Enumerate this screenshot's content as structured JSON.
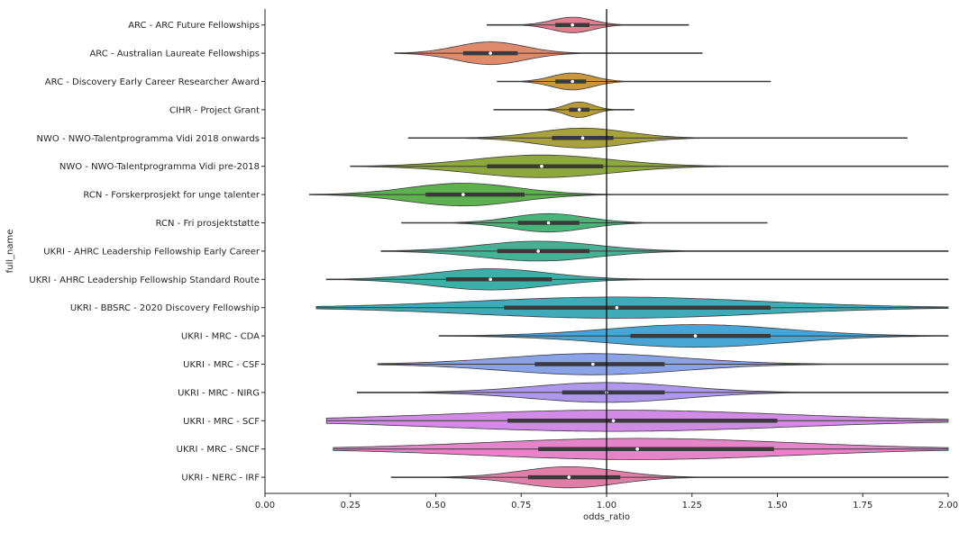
{
  "chart_data": {
    "type": "violin",
    "xlabel": "odds_ratio",
    "ylabel": "full_name",
    "xlim": [
      0.0,
      2.0
    ],
    "xticks": [
      "0.00",
      "0.25",
      "0.50",
      "0.75",
      "1.00",
      "1.25",
      "1.50",
      "1.75",
      "2.00"
    ],
    "xtick_values": [
      0,
      0.25,
      0.5,
      0.75,
      1.0,
      1.25,
      1.5,
      1.75,
      2.0
    ],
    "reference_line": 1.0,
    "categories": [
      "ARC - ARC Future Fellowships",
      "ARC - Australian Laureate Fellowships",
      "ARC - Discovery Early Career Researcher Award",
      "CIHR - Project Grant",
      "NWO - NWO-Talentprogramma Vidi 2018 onwards",
      "NWO - NWO-Talentprogramma Vidi pre-2018",
      "RCN - Forskerprosjekt for unge talenter",
      "RCN - Fri prosjektstøtte",
      "UKRI - AHRC Leadership Fellowship Early Career",
      "UKRI - AHRC Leadership Fellowship Standard Route",
      "UKRI - BBSRC - 2020 Discovery Fellowship",
      "UKRI - MRC - CDA",
      "UKRI - MRC - CSF",
      "UKRI - MRC - NIRG",
      "UKRI - MRC - SCF",
      "UKRI - MRC - SNCF",
      "UKRI - NERC - IRF"
    ],
    "series": [
      {
        "name": "ARC - ARC Future Fellowships",
        "min": 0.65,
        "max": 1.24,
        "q1": 0.85,
        "median": 0.9,
        "q3": 0.95,
        "width": 0.55,
        "sd": 0.06,
        "color": "#e17c91"
      },
      {
        "name": "ARC - Australian Laureate Fellowships",
        "min": 0.38,
        "max": 1.28,
        "q1": 0.58,
        "median": 0.66,
        "q3": 0.74,
        "width": 0.8,
        "sd": 0.1,
        "color": "#e08a6c"
      },
      {
        "name": "ARC - Discovery Early Career Researcher Award",
        "min": 0.68,
        "max": 1.48,
        "q1": 0.85,
        "median": 0.9,
        "q3": 0.94,
        "width": 0.6,
        "sd": 0.06,
        "color": "#c9973d"
      },
      {
        "name": "CIHR - Project Grant",
        "min": 0.67,
        "max": 1.08,
        "q1": 0.89,
        "median": 0.92,
        "q3": 0.95,
        "width": 0.55,
        "sd": 0.04,
        "color": "#b89b36"
      },
      {
        "name": "NWO - NWO-Talentprogramma Vidi 2018 onwards",
        "min": 0.42,
        "max": 1.88,
        "q1": 0.84,
        "median": 0.93,
        "q3": 1.02,
        "width": 0.7,
        "sd": 0.13,
        "color": "#a7a23a"
      },
      {
        "name": "NWO - NWO-Talentprogramma Vidi pre-2018",
        "min": 0.25,
        "max": 2.0,
        "q1": 0.65,
        "median": 0.81,
        "q3": 0.99,
        "width": 0.8,
        "sd": 0.2,
        "color": "#8fa83b"
      },
      {
        "name": "RCN - Forskerprosjekt for unge talenter",
        "min": 0.13,
        "max": 2.0,
        "q1": 0.47,
        "median": 0.58,
        "q3": 0.76,
        "width": 0.8,
        "sd": 0.16,
        "color": "#5db14e"
      },
      {
        "name": "RCN - Fri prosjektstøtte",
        "min": 0.4,
        "max": 1.47,
        "q1": 0.74,
        "median": 0.83,
        "q3": 0.92,
        "width": 0.65,
        "sd": 0.11,
        "color": "#49b47a"
      },
      {
        "name": "UKRI - AHRC Leadership Fellowship Early Career",
        "min": 0.34,
        "max": 2.0,
        "q1": 0.68,
        "median": 0.8,
        "q3": 0.95,
        "width": 0.7,
        "sd": 0.17,
        "color": "#45b295"
      },
      {
        "name": "UKRI - AHRC Leadership Fellowship Standard Route",
        "min": 0.18,
        "max": 2.0,
        "q1": 0.53,
        "median": 0.66,
        "q3": 0.84,
        "width": 0.75,
        "sd": 0.17,
        "color": "#3eaea8"
      },
      {
        "name": "UKRI - BBSRC - 2020 Discovery Fellowship",
        "min": 0.15,
        "max": 2.0,
        "q1": 0.7,
        "median": 1.03,
        "q3": 1.48,
        "width": 0.75,
        "sd": 0.42,
        "color": "#40aab8"
      },
      {
        "name": "UKRI - MRC - CDA",
        "min": 0.51,
        "max": 2.0,
        "q1": 1.07,
        "median": 1.26,
        "q3": 1.48,
        "width": 0.8,
        "sd": 0.26,
        "color": "#48a6d6"
      },
      {
        "name": "UKRI - MRC - CSF",
        "min": 0.33,
        "max": 2.0,
        "q1": 0.79,
        "median": 0.96,
        "q3": 1.17,
        "width": 0.75,
        "sd": 0.26,
        "color": "#8aa2e8"
      },
      {
        "name": "UKRI - MRC - NIRG",
        "min": 0.27,
        "max": 2.0,
        "q1": 0.87,
        "median": 1.0,
        "q3": 1.17,
        "width": 0.7,
        "sd": 0.22,
        "color": "#ae98ec"
      },
      {
        "name": "UKRI - MRC - SCF",
        "min": 0.18,
        "max": 2.0,
        "q1": 0.71,
        "median": 1.02,
        "q3": 1.5,
        "width": 0.75,
        "sd": 0.5,
        "color": "#d18ae6"
      },
      {
        "name": "UKRI - MRC - SNCF",
        "min": 0.2,
        "max": 2.0,
        "q1": 0.8,
        "median": 1.09,
        "q3": 1.49,
        "width": 0.75,
        "sd": 0.45,
        "color": "#e584c8"
      },
      {
        "name": "UKRI - NERC - IRF",
        "min": 0.37,
        "max": 2.0,
        "q1": 0.77,
        "median": 0.89,
        "q3": 1.04,
        "width": 0.75,
        "sd": 0.14,
        "color": "#e07ea7"
      }
    ]
  }
}
